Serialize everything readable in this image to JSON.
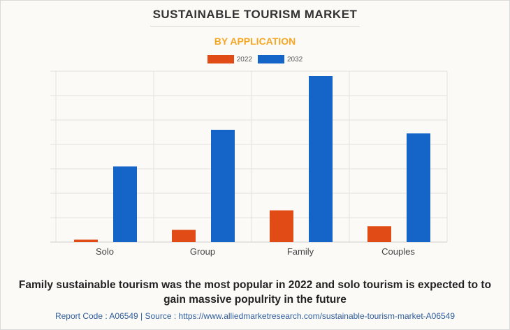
{
  "header": {
    "title": "SUSTAINABLE TOURISM MARKET",
    "subtitle": "BY APPLICATION"
  },
  "colors": {
    "series_2022": "#e04b16",
    "series_2032": "#1565c8",
    "subtitle": "#f5a623"
  },
  "chart_data": {
    "type": "bar",
    "categories": [
      "Solo",
      "Group",
      "Family",
      "Couples"
    ],
    "series": [
      {
        "name": "2022",
        "values": [
          1,
          5,
          13,
          6.5
        ]
      },
      {
        "name": "2032",
        "values": [
          31,
          46,
          68,
          44.5
        ]
      }
    ],
    "ylim": [
      0,
      70
    ],
    "grid": true,
    "y_tick_labels_shown": false,
    "legend_position": "top-center",
    "title": "SUSTAINABLE TOURISM MARKET",
    "subtitle": "BY APPLICATION",
    "xlabel": "",
    "ylabel": ""
  },
  "caption": "Family sustainable tourism was the most popular in 2022 and solo tourism is expected to to gain massive populrity in the future",
  "footer": "Report Code : A06549  |  Source : https://www.alliedmarketresearch.com/sustainable-tourism-market-A06549"
}
